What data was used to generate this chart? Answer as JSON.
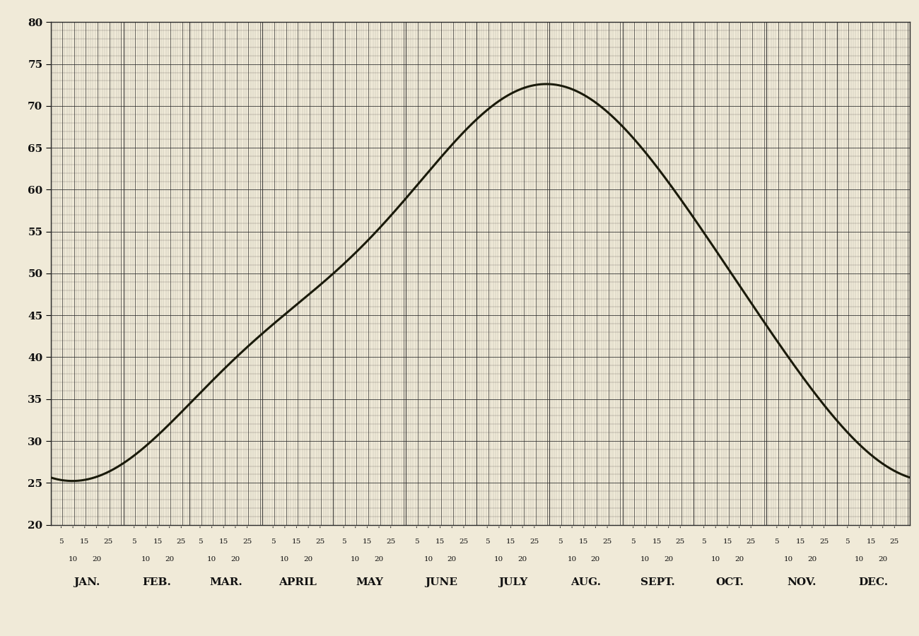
{
  "equation": {
    "mean": 48.5,
    "a1": -20.91,
    "a2": -1.28,
    "a3": -0.67,
    "b1": -7.47,
    "b2": 2.38,
    "b3": -0.83
  },
  "ylim": [
    20,
    80
  ],
  "ytick_values": [
    20,
    25,
    30,
    35,
    40,
    45,
    50,
    55,
    60,
    65,
    70,
    75,
    80
  ],
  "months": [
    "JAN.",
    "FEB.",
    "MAR.",
    "APRIL",
    "MAY",
    "JUNE",
    "JULY",
    "AUG.",
    "SEPT.",
    "OCT.",
    "NOV.",
    "DEC."
  ],
  "background_color": "#f0ead8",
  "grid_major_color": "#2a2a2a",
  "grid_minor_color": "#555555",
  "curve_color": "#1a1a0a",
  "line_width": 2.2,
  "days_per_month": [
    31,
    28,
    31,
    30,
    31,
    30,
    31,
    31,
    30,
    31,
    30,
    31
  ]
}
